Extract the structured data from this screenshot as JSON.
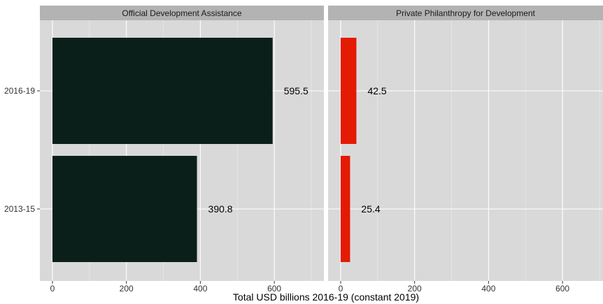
{
  "chart_data": {
    "type": "bar",
    "orientation": "horizontal",
    "facets": [
      "Official Development Assistance",
      "Private Philanthropy for Development"
    ],
    "categories": [
      "2016-19",
      "2013-15"
    ],
    "series": [
      {
        "facet": "Official Development Assistance",
        "values": [
          595.5,
          390.8
        ],
        "labels": [
          "595.5",
          "390.8"
        ],
        "color": "#0b1f1a"
      },
      {
        "facet": "Private Philanthropy for Development",
        "values": [
          42.5,
          25.4
        ],
        "labels": [
          "42.5",
          "25.4"
        ],
        "color": "#e41a03"
      }
    ],
    "xlabel": "Total USD billions 2016-19 (constant 2019)",
    "xticks": [
      0,
      200,
      400,
      600
    ],
    "xlim": [
      0,
      700
    ],
    "grid": true,
    "panel_background": "#d9d9d9",
    "strip_background": "#b3b3b3"
  }
}
